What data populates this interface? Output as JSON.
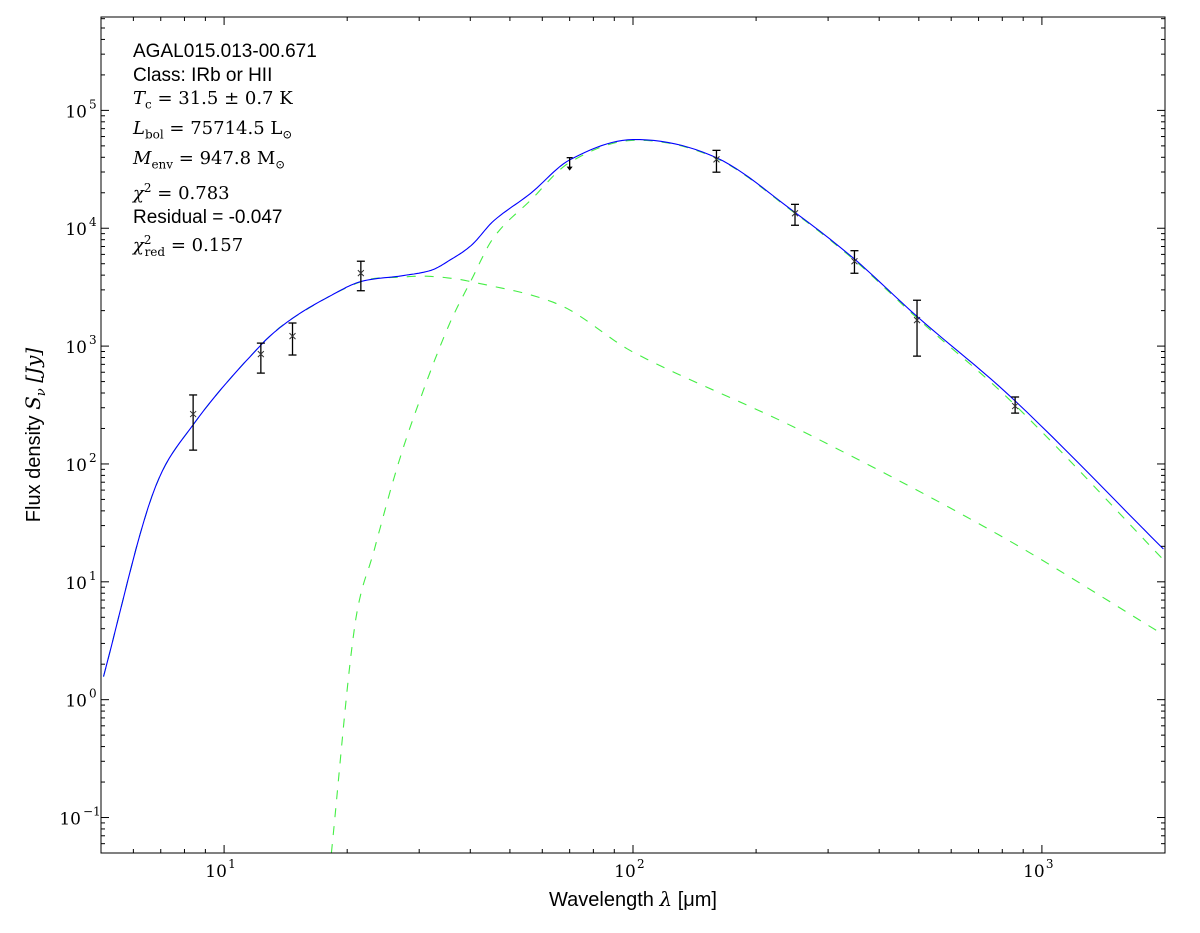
{
  "chart_data": {
    "type": "scatter",
    "title": "",
    "xlabel": {
      "text": "Wavelength",
      "symbol": "λ",
      "unit": "[μm]"
    },
    "ylabel": {
      "text": "Flux density",
      "symbol": "S",
      "sub": "ν",
      "unit": "[Jy]"
    },
    "xscale": "log",
    "yscale": "log",
    "xlim": [
      5,
      2000
    ],
    "ylim": [
      0.05,
      620000
    ],
    "x_ticks": [
      {
        "base": "10",
        "exp": "1",
        "value": 10
      },
      {
        "base": "10",
        "exp": "2",
        "value": 100
      },
      {
        "base": "10",
        "exp": "3",
        "value": 1000
      }
    ],
    "y_ticks": [
      {
        "base": "10",
        "exp": "−1",
        "value": 0.1
      },
      {
        "base": "10",
        "exp": "0",
        "value": 1
      },
      {
        "base": "10",
        "exp": "1",
        "value": 10
      },
      {
        "base": "10",
        "exp": "2",
        "value": 100
      },
      {
        "base": "10",
        "exp": "3",
        "value": 1000
      },
      {
        "base": "10",
        "exp": "4",
        "value": 10000
      },
      {
        "base": "10",
        "exp": "5",
        "value": 100000
      }
    ],
    "grid": false,
    "points": [
      {
        "x": 8.4,
        "y": 265,
        "lo": 131,
        "hi": 385
      },
      {
        "x": 12.3,
        "y": 855,
        "lo": 590,
        "hi": 1060
      },
      {
        "x": 14.7,
        "y": 1215,
        "lo": 840,
        "hi": 1570
      },
      {
        "x": 21.6,
        "y": 4160,
        "lo": 2950,
        "hi": 5250
      },
      {
        "x": 70,
        "y": 36000,
        "upper_limit": true
      },
      {
        "x": 160,
        "y": 38400,
        "lo": 29900,
        "hi": 45800
      },
      {
        "x": 249,
        "y": 13400,
        "lo": 10600,
        "hi": 15950
      },
      {
        "x": 348,
        "y": 5250,
        "lo": 4150,
        "hi": 6450
      },
      {
        "x": 495,
        "y": 1660,
        "lo": 822,
        "hi": 2450
      },
      {
        "x": 860,
        "y": 310,
        "lo": 270,
        "hi": 370
      }
    ],
    "series": [
      {
        "name": "total",
        "color": "#0000ff",
        "style": "solid",
        "x": [
          5.07,
          6.67,
          8.4,
          12.3,
          14.7,
          18.3,
          21.6,
          27.2,
          32.1,
          35.3,
          40.2,
          45.7,
          56.2,
          70,
          100,
          160,
          249,
          348,
          495,
          860,
          1982
        ],
        "y": [
          1.57,
          54,
          215,
          1020,
          1720,
          2700,
          3530,
          3950,
          4400,
          5250,
          7140,
          11600,
          19800,
          38000,
          56600,
          39650,
          13600,
          5470,
          1785,
          343,
          19
        ]
      },
      {
        "name": "cold component",
        "color": "#44ee44",
        "style": "dashed",
        "x": [
          18.3,
          20.8,
          23.3,
          26.7,
          30.3,
          35.3,
          40.2,
          45.7,
          56.2,
          70,
          100,
          160,
          249,
          348,
          495,
          860,
          1982
        ],
        "y": [
          0.05,
          3.9,
          18.7,
          102,
          370,
          1450,
          3620,
          8400,
          17300,
          36200,
          55700,
          39200,
          13400,
          5360,
          1730,
          316,
          15.4
        ]
      },
      {
        "name": "warm component",
        "color": "#44ee44",
        "style": "dashed",
        "x": [
          5.07,
          6.67,
          8.4,
          12.3,
          14.7,
          21.6,
          27.2,
          32.1,
          40.2,
          66.5,
          100,
          256,
          785,
          1982
        ],
        "y": [
          1.57,
          54,
          215,
          1020,
          1720,
          3520,
          3850,
          3900,
          3520,
          2220,
          890,
          194,
          25,
          3.56
        ]
      }
    ],
    "annotations": {
      "source": "AGAL015.013-00.671",
      "class": "Class: IRb or HII",
      "tc": {
        "sym": "T",
        "sub": "c",
        "rest": " = 31.5 ± 0.7 K"
      },
      "lbol": {
        "sym": "L",
        "sub": "bol",
        "rest": " = 75714.5 L",
        "rest_sub": "⊙"
      },
      "menv": {
        "sym": "M",
        "sub": "env",
        "rest": " = 947.8 M",
        "rest_sub": "⊙"
      },
      "chi2": {
        "sym": "χ",
        "sup": "2",
        "rest": " = 0.783"
      },
      "residual": "Residual = -0.047",
      "chi2red": {
        "sym": "χ",
        "sup": "2",
        "sub": "red",
        "rest": " = 0.157"
      }
    }
  }
}
